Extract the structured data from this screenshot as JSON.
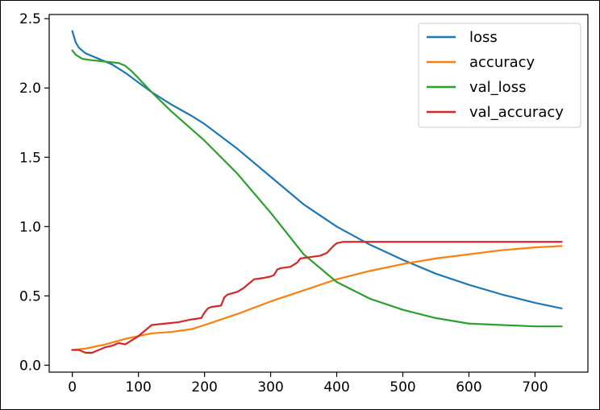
{
  "chart_data": {
    "type": "line",
    "title": "",
    "xlabel": "",
    "ylabel": "",
    "xlim": [
      -35,
      780
    ],
    "ylim": [
      -0.05,
      2.53
    ],
    "xticks": [
      0,
      100,
      200,
      300,
      400,
      500,
      600,
      700
    ],
    "xtick_labels": [
      "0",
      "100",
      "200",
      "300",
      "400",
      "500",
      "600",
      "700"
    ],
    "yticks": [
      0.0,
      0.5,
      1.0,
      1.5,
      2.0,
      2.5
    ],
    "ytick_labels": [
      "0.0",
      "0.5",
      "1.0",
      "1.5",
      "2.0",
      "2.5"
    ],
    "grid": false,
    "legend_position": "top-right",
    "series": [
      {
        "name": "loss",
        "color": "#1f77b4",
        "points": [
          [
            0,
            2.41
          ],
          [
            5,
            2.33
          ],
          [
            10,
            2.29
          ],
          [
            20,
            2.25
          ],
          [
            40,
            2.21
          ],
          [
            60,
            2.17
          ],
          [
            80,
            2.11
          ],
          [
            100,
            2.04
          ],
          [
            120,
            1.97
          ],
          [
            150,
            1.88
          ],
          [
            180,
            1.8
          ],
          [
            200,
            1.74
          ],
          [
            250,
            1.56
          ],
          [
            300,
            1.36
          ],
          [
            350,
            1.16
          ],
          [
            400,
            1.0
          ],
          [
            450,
            0.87
          ],
          [
            500,
            0.76
          ],
          [
            550,
            0.66
          ],
          [
            600,
            0.58
          ],
          [
            650,
            0.51
          ],
          [
            700,
            0.45
          ],
          [
            740,
            0.41
          ]
        ]
      },
      {
        "name": "accuracy",
        "color": "#ff7f0e",
        "points": [
          [
            0,
            0.11
          ],
          [
            20,
            0.12
          ],
          [
            50,
            0.15
          ],
          [
            80,
            0.19
          ],
          [
            100,
            0.21
          ],
          [
            120,
            0.23
          ],
          [
            150,
            0.24
          ],
          [
            180,
            0.26
          ],
          [
            200,
            0.29
          ],
          [
            250,
            0.37
          ],
          [
            300,
            0.46
          ],
          [
            350,
            0.54
          ],
          [
            400,
            0.62
          ],
          [
            450,
            0.68
          ],
          [
            500,
            0.73
          ],
          [
            550,
            0.77
          ],
          [
            600,
            0.8
          ],
          [
            650,
            0.83
          ],
          [
            700,
            0.85
          ],
          [
            740,
            0.86
          ]
        ]
      },
      {
        "name": "val_loss",
        "color": "#2ca02c",
        "points": [
          [
            0,
            2.27
          ],
          [
            5,
            2.24
          ],
          [
            15,
            2.21
          ],
          [
            30,
            2.2
          ],
          [
            50,
            2.19
          ],
          [
            70,
            2.18
          ],
          [
            80,
            2.16
          ],
          [
            90,
            2.12
          ],
          [
            100,
            2.07
          ],
          [
            120,
            1.97
          ],
          [
            150,
            1.83
          ],
          [
            200,
            1.62
          ],
          [
            250,
            1.38
          ],
          [
            300,
            1.1
          ],
          [
            350,
            0.8
          ],
          [
            400,
            0.6
          ],
          [
            450,
            0.48
          ],
          [
            500,
            0.4
          ],
          [
            550,
            0.34
          ],
          [
            600,
            0.3
          ],
          [
            650,
            0.29
          ],
          [
            700,
            0.28
          ],
          [
            740,
            0.28
          ]
        ]
      },
      {
        "name": "val_accuracy",
        "color": "#d62728",
        "points": [
          [
            0,
            0.11
          ],
          [
            10,
            0.11
          ],
          [
            20,
            0.09
          ],
          [
            30,
            0.09
          ],
          [
            40,
            0.11
          ],
          [
            50,
            0.13
          ],
          [
            60,
            0.14
          ],
          [
            70,
            0.16
          ],
          [
            80,
            0.15
          ],
          [
            90,
            0.18
          ],
          [
            100,
            0.21
          ],
          [
            110,
            0.25
          ],
          [
            120,
            0.29
          ],
          [
            140,
            0.3
          ],
          [
            160,
            0.31
          ],
          [
            180,
            0.33
          ],
          [
            195,
            0.34
          ],
          [
            200,
            0.38
          ],
          [
            205,
            0.41
          ],
          [
            210,
            0.42
          ],
          [
            225,
            0.43
          ],
          [
            230,
            0.49
          ],
          [
            235,
            0.51
          ],
          [
            250,
            0.53
          ],
          [
            260,
            0.56
          ],
          [
            270,
            0.6
          ],
          [
            275,
            0.62
          ],
          [
            290,
            0.63
          ],
          [
            300,
            0.64
          ],
          [
            305,
            0.65
          ],
          [
            310,
            0.69
          ],
          [
            315,
            0.7
          ],
          [
            330,
            0.71
          ],
          [
            340,
            0.74
          ],
          [
            345,
            0.77
          ],
          [
            360,
            0.78
          ],
          [
            375,
            0.79
          ],
          [
            385,
            0.81
          ],
          [
            395,
            0.86
          ],
          [
            400,
            0.88
          ],
          [
            410,
            0.89
          ],
          [
            450,
            0.89
          ],
          [
            500,
            0.89
          ],
          [
            550,
            0.89
          ],
          [
            600,
            0.89
          ],
          [
            700,
            0.89
          ],
          [
            740,
            0.89
          ]
        ]
      }
    ]
  }
}
